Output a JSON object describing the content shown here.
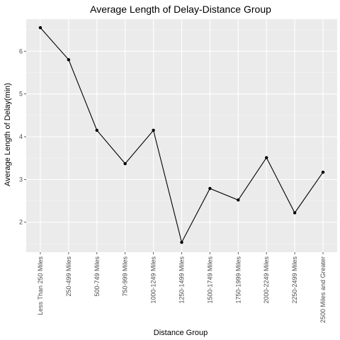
{
  "chart_data": {
    "type": "line",
    "title": "Average Length of Delay-Distance Group",
    "xlabel": "Distance Group",
    "ylabel": "Average Length of Delay(min)",
    "categories": [
      "Less Than 250 Miles",
      "250-499 Miles",
      "500-749 Miles",
      "750-999 Miles",
      "1000-1249 Miles",
      "1250-1499 Miles",
      "1500-1749 Miles",
      "1750-1999 Miles",
      "2000-2249 Miles",
      "2250-2499 Miles",
      "2500 Miles and Greater"
    ],
    "values": [
      6.55,
      5.8,
      4.15,
      3.37,
      4.15,
      1.53,
      2.79,
      2.52,
      3.51,
      2.22,
      3.17
    ],
    "ylim": [
      1.3,
      6.75
    ],
    "yticks": [
      2,
      3,
      4,
      5,
      6
    ],
    "grid": true,
    "legend": "none",
    "colors": {
      "panel": "#EBEBEB",
      "grid_major": "#FFFFFF",
      "grid_minor": "#F5F5F5",
      "line": "#000000",
      "tick_text": "#4D4D4D"
    }
  }
}
